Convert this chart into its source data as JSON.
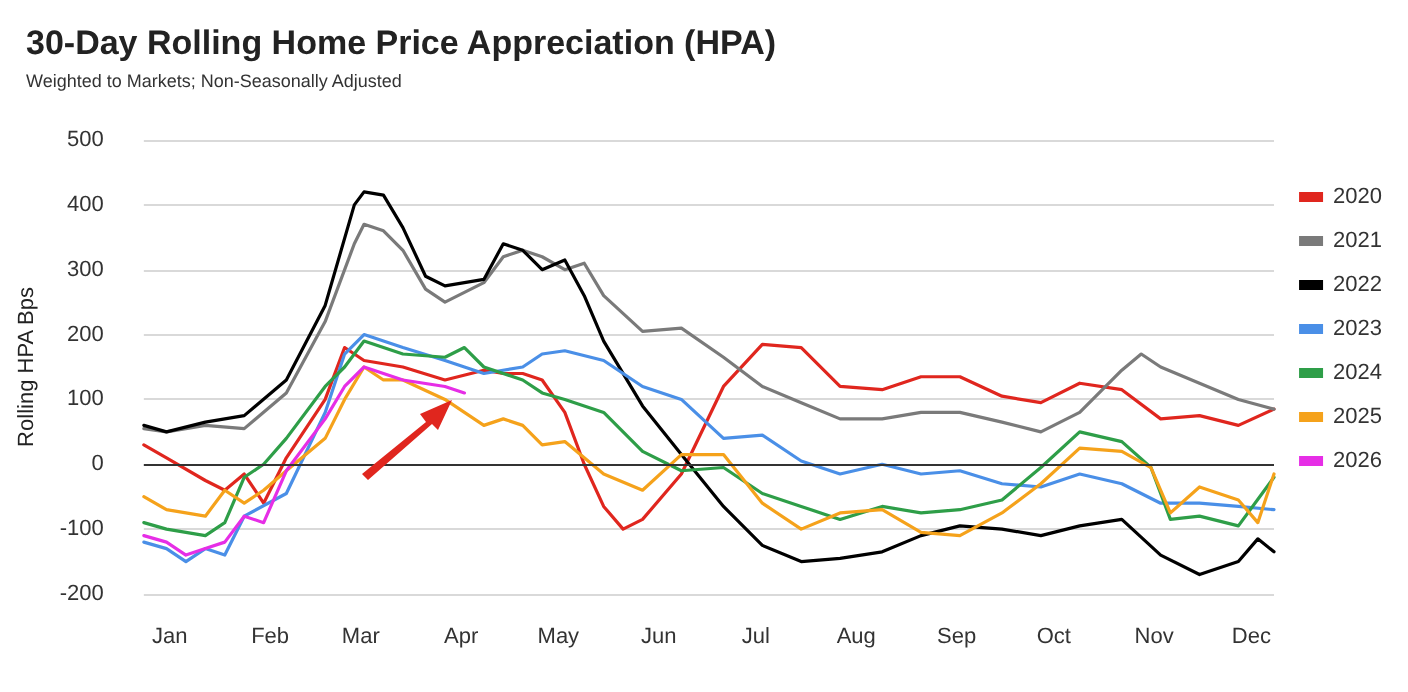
{
  "chart_data": {
    "type": "line",
    "title": "30-Day Rolling Home Price Appreciation (HPA)",
    "subtitle": "Weighted to Markets; Non-Seasonally Adjusted",
    "ylabel": "Rolling HPA Bps",
    "xlim": [
      "--01-01",
      "--12-16"
    ],
    "xticks": [
      {
        "value": "--01-09",
        "label": "Jan"
      },
      {
        "value": "--02-09",
        "label": "Feb"
      },
      {
        "value": "--03-09",
        "label": "Mar"
      },
      {
        "value": "--04-09",
        "label": "Apr"
      },
      {
        "value": "--05-09",
        "label": "May"
      },
      {
        "value": "--06-09",
        "label": "Jun"
      },
      {
        "value": "--07-09",
        "label": "Jul"
      },
      {
        "value": "--08-09",
        "label": "Aug"
      },
      {
        "value": "--09-09",
        "label": "Sep"
      },
      {
        "value": "--10-09",
        "label": "Oct"
      },
      {
        "value": "--11-09",
        "label": "Nov"
      },
      {
        "value": "--12-09",
        "label": "Dec"
      }
    ],
    "ylim": [
      -200,
      500
    ],
    "yticks": [
      -200,
      -100,
      0,
      100,
      200,
      300,
      400,
      500
    ],
    "grid": "y",
    "legend": "right",
    "marker": "none",
    "line_style": "solid",
    "ref_lines": [
      {
        "axis": "y",
        "value": 0,
        "color": "#333333"
      }
    ],
    "series": [
      {
        "name": "2020",
        "color": "#e0261e",
        "x": [
          "--01-01",
          "--01-08",
          "--01-20",
          "--01-26",
          "--02-01",
          "--02-07",
          "--02-14",
          "--02-26",
          "--03-04",
          "--03-10",
          "--03-22",
          "--04-04",
          "--04-16",
          "--04-22",
          "--04-28",
          "--05-04",
          "--05-11",
          "--05-17",
          "--05-23",
          "--05-29",
          "--06-04",
          "--06-16",
          "--06-29",
          "--07-11",
          "--07-23",
          "--08-04",
          "--08-17",
          "--08-29",
          "--09-10",
          "--09-23",
          "--10-05",
          "--10-17",
          "--10-30",
          "--11-11",
          "--11-23",
          "--12-05",
          "--12-16"
        ],
        "values": [
          30,
          10,
          -25,
          -40,
          -15,
          -60,
          10,
          100,
          180,
          160,
          150,
          130,
          145,
          140,
          140,
          130,
          80,
          0,
          -65,
          -100,
          -85,
          -15,
          120,
          185,
          180,
          120,
          115,
          135,
          135,
          105,
          95,
          125,
          115,
          70,
          75,
          60,
          85
        ]
      },
      {
        "name": "2021",
        "color": "#7a7a7a",
        "x": [
          "--01-01",
          "--01-08",
          "--01-20",
          "--02-01",
          "--02-14",
          "--02-26",
          "--03-07",
          "--03-10",
          "--03-16",
          "--03-22",
          "--03-29",
          "--04-04",
          "--04-16",
          "--04-22",
          "--04-28",
          "--05-04",
          "--05-11",
          "--05-17",
          "--05-23",
          "--06-04",
          "--06-16",
          "--06-29",
          "--07-11",
          "--07-23",
          "--08-04",
          "--08-17",
          "--08-29",
          "--09-10",
          "--09-23",
          "--10-05",
          "--10-17",
          "--10-30",
          "--11-05",
          "--11-11",
          "--11-23",
          "--12-05",
          "--12-16"
        ],
        "values": [
          55,
          50,
          60,
          55,
          110,
          220,
          340,
          370,
          360,
          330,
          270,
          250,
          280,
          320,
          330,
          320,
          300,
          310,
          260,
          205,
          210,
          165,
          120,
          95,
          70,
          70,
          80,
          80,
          65,
          50,
          80,
          145,
          170,
          150,
          125,
          100,
          85
        ]
      },
      {
        "name": "2022",
        "color": "#000000",
        "x": [
          "--01-01",
          "--01-08",
          "--01-20",
          "--02-01",
          "--02-14",
          "--02-26",
          "--03-07",
          "--03-10",
          "--03-16",
          "--03-22",
          "--03-29",
          "--04-04",
          "--04-16",
          "--04-22",
          "--04-28",
          "--05-04",
          "--05-11",
          "--05-17",
          "--05-23",
          "--06-04",
          "--06-16",
          "--06-29",
          "--07-11",
          "--07-23",
          "--08-04",
          "--08-17",
          "--08-29",
          "--09-10",
          "--09-23",
          "--10-05",
          "--10-17",
          "--10-30",
          "--11-11",
          "--11-23",
          "--12-05",
          "--12-11",
          "--12-16"
        ],
        "values": [
          60,
          50,
          65,
          75,
          130,
          245,
          400,
          420,
          415,
          365,
          290,
          275,
          285,
          340,
          330,
          300,
          315,
          260,
          190,
          90,
          15,
          -65,
          -125,
          -150,
          -145,
          -135,
          -110,
          -95,
          -100,
          -110,
          -95,
          -85,
          -140,
          -170,
          -150,
          -115,
          -135
        ]
      },
      {
        "name": "2023",
        "color": "#4a8fe7",
        "x": [
          "--01-01",
          "--01-08",
          "--01-14",
          "--01-20",
          "--01-26",
          "--02-01",
          "--02-14",
          "--02-26",
          "--03-04",
          "--03-10",
          "--03-22",
          "--04-04",
          "--04-16",
          "--04-28",
          "--05-04",
          "--05-11",
          "--05-23",
          "--06-04",
          "--06-16",
          "--06-29",
          "--07-11",
          "--07-23",
          "--08-04",
          "--08-17",
          "--08-29",
          "--09-10",
          "--09-23",
          "--10-05",
          "--10-17",
          "--10-30",
          "--11-11",
          "--11-23",
          "--12-05",
          "--12-16"
        ],
        "values": [
          -120,
          -130,
          -150,
          -130,
          -140,
          -80,
          -45,
          80,
          170,
          200,
          180,
          160,
          140,
          150,
          170,
          175,
          160,
          120,
          100,
          40,
          45,
          5,
          -15,
          0,
          -15,
          -10,
          -30,
          -35,
          -15,
          -30,
          -60,
          -60,
          -65,
          -70
        ]
      },
      {
        "name": "2024",
        "color": "#2e9e48",
        "x": [
          "--01-01",
          "--01-08",
          "--01-20",
          "--01-26",
          "--02-01",
          "--02-07",
          "--02-14",
          "--02-26",
          "--03-04",
          "--03-10",
          "--03-22",
          "--04-04",
          "--04-10",
          "--04-16",
          "--04-28",
          "--05-04",
          "--05-11",
          "--05-23",
          "--06-04",
          "--06-16",
          "--06-29",
          "--07-11",
          "--07-23",
          "--08-04",
          "--08-17",
          "--08-29",
          "--09-10",
          "--09-23",
          "--10-05",
          "--10-17",
          "--10-30",
          "--11-08",
          "--11-14",
          "--11-23",
          "--12-05",
          "--12-16"
        ],
        "values": [
          -90,
          -100,
          -110,
          -90,
          -20,
          0,
          40,
          120,
          150,
          190,
          170,
          165,
          180,
          150,
          130,
          110,
          100,
          80,
          20,
          -10,
          -5,
          -45,
          -65,
          -85,
          -65,
          -75,
          -70,
          -55,
          -5,
          50,
          35,
          -5,
          -85,
          -80,
          -95,
          -20
        ]
      },
      {
        "name": "2025",
        "color": "#f5a21b",
        "x": [
          "--01-01",
          "--01-08",
          "--01-20",
          "--01-26",
          "--02-01",
          "--02-07",
          "--02-14",
          "--02-26",
          "--03-04",
          "--03-10",
          "--03-16",
          "--03-22",
          "--04-04",
          "--04-10",
          "--04-16",
          "--04-22",
          "--04-28",
          "--05-04",
          "--05-11",
          "--05-23",
          "--06-04",
          "--06-16",
          "--06-29",
          "--07-11",
          "--07-23",
          "--08-04",
          "--08-17",
          "--08-29",
          "--09-10",
          "--09-23",
          "--10-05",
          "--10-17",
          "--10-30",
          "--11-08",
          "--11-14",
          "--11-23",
          "--12-05",
          "--12-11",
          "--12-16"
        ],
        "values": [
          -50,
          -70,
          -80,
          -40,
          -60,
          -40,
          -10,
          40,
          100,
          150,
          130,
          130,
          100,
          80,
          60,
          70,
          60,
          30,
          35,
          -15,
          -40,
          15,
          15,
          -60,
          -100,
          -75,
          -70,
          -105,
          -110,
          -75,
          -30,
          25,
          20,
          -5,
          -75,
          -35,
          -55,
          -90,
          -15
        ]
      },
      {
        "name": "2026",
        "color": "#e62ee6",
        "x": [
          "--01-01",
          "--01-08",
          "--01-14",
          "--01-20",
          "--01-26",
          "--02-01",
          "--02-07",
          "--02-14",
          "--02-26",
          "--03-04",
          "--03-10",
          "--03-22",
          "--04-04",
          "--04-10"
        ],
        "values": [
          -110,
          -120,
          -140,
          -130,
          -120,
          -80,
          -90,
          -10,
          70,
          120,
          150,
          130,
          120,
          110
        ]
      }
    ]
  }
}
